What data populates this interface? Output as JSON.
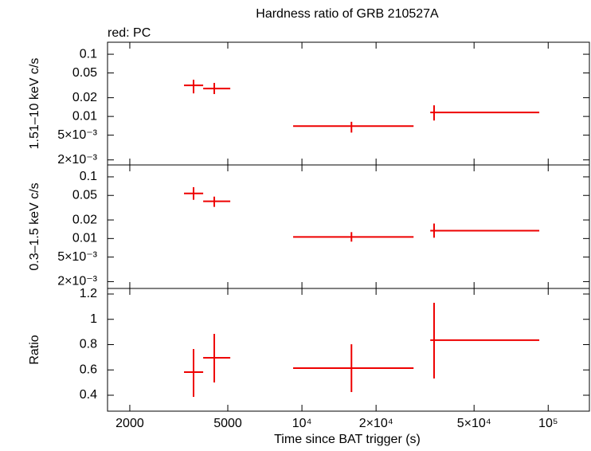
{
  "chart_data": [
    {
      "type": "errorbar",
      "title": "Hardness ratio of GRB 210527A",
      "annotation": "red: PC",
      "y_label": "1.51–10 keV c/s",
      "x_log": true,
      "y_log": true,
      "xlim": [
        1624,
        147000
      ],
      "ylim": [
        0.00166,
        0.156
      ],
      "yticks": [
        0.1,
        0.05,
        0.02,
        0.01,
        {
          "value": 0.005,
          "label": "5×10⁻³"
        },
        {
          "value": 0.002,
          "label": "2×10⁻³"
        }
      ],
      "series": [
        {
          "name": "PC",
          "color": "#ee0000",
          "x": [
            3630,
            4406,
            15890,
            34400
          ],
          "xlow": [
            3320,
            3972,
            9210,
            33200
          ],
          "xhigh": [
            3972,
            5117,
            28400,
            92000
          ],
          "y": [
            0.0316,
            0.0281,
            0.007,
            0.0116
          ],
          "ylow": [
            0.0235,
            0.0229,
            0.0055,
            0.0086
          ],
          "yhigh": [
            0.0389,
            0.0346,
            0.0082,
            0.0151
          ]
        }
      ]
    },
    {
      "type": "errorbar",
      "y_label": "0.3–1.5 keV c/s",
      "x_log": true,
      "y_log": true,
      "xlim": [
        1624,
        147000
      ],
      "ylim": [
        0.00155,
        0.156
      ],
      "yticks": [
        0.1,
        0.05,
        0.02,
        0.01,
        {
          "value": 0.005,
          "label": "5×10⁻³"
        },
        {
          "value": 0.002,
          "label": "2×10⁻³"
        }
      ],
      "series": [
        {
          "name": "PC",
          "color": "#ee0000",
          "x": [
            3630,
            4406,
            15890,
            34400
          ],
          "xlow": [
            3320,
            3972,
            9210,
            33200
          ],
          "xhigh": [
            3972,
            5117,
            28400,
            92000
          ],
          "y": [
            0.0538,
            0.0401,
            0.0106,
            0.0134
          ],
          "ylow": [
            0.0425,
            0.0326,
            0.0089,
            0.0103
          ],
          "yhigh": [
            0.068,
            0.0478,
            0.0127,
            0.0175
          ]
        }
      ]
    },
    {
      "type": "errorbar",
      "y_label": "Ratio",
      "x_label": "Time since BAT trigger (s)",
      "x_log": true,
      "y_log": false,
      "xlim": [
        1624,
        147000
      ],
      "ylim": [
        0.274,
        1.244
      ],
      "yticks": [
        0.4,
        0.6,
        0.8,
        1,
        1.2
      ],
      "xticks": [
        2000,
        5000,
        {
          "value": 10000,
          "label": "10⁴"
        },
        {
          "value": 20000,
          "label": "2×10⁴"
        },
        {
          "value": 50000,
          "label": "5×10⁴"
        },
        {
          "value": 100000,
          "label": "10⁵"
        }
      ],
      "series": [
        {
          "name": "PC",
          "color": "#ee0000",
          "x": [
            3630,
            4406,
            15890,
            34400
          ],
          "xlow": [
            3320,
            3972,
            9210,
            33200
          ],
          "xhigh": [
            3972,
            5117,
            28400,
            92000
          ],
          "y": [
            0.583,
            0.696,
            0.614,
            0.835
          ],
          "ylow": [
            0.387,
            0.501,
            0.425,
            0.532
          ],
          "yhigh": [
            0.765,
            0.885,
            0.803,
            1.131
          ]
        }
      ]
    }
  ]
}
